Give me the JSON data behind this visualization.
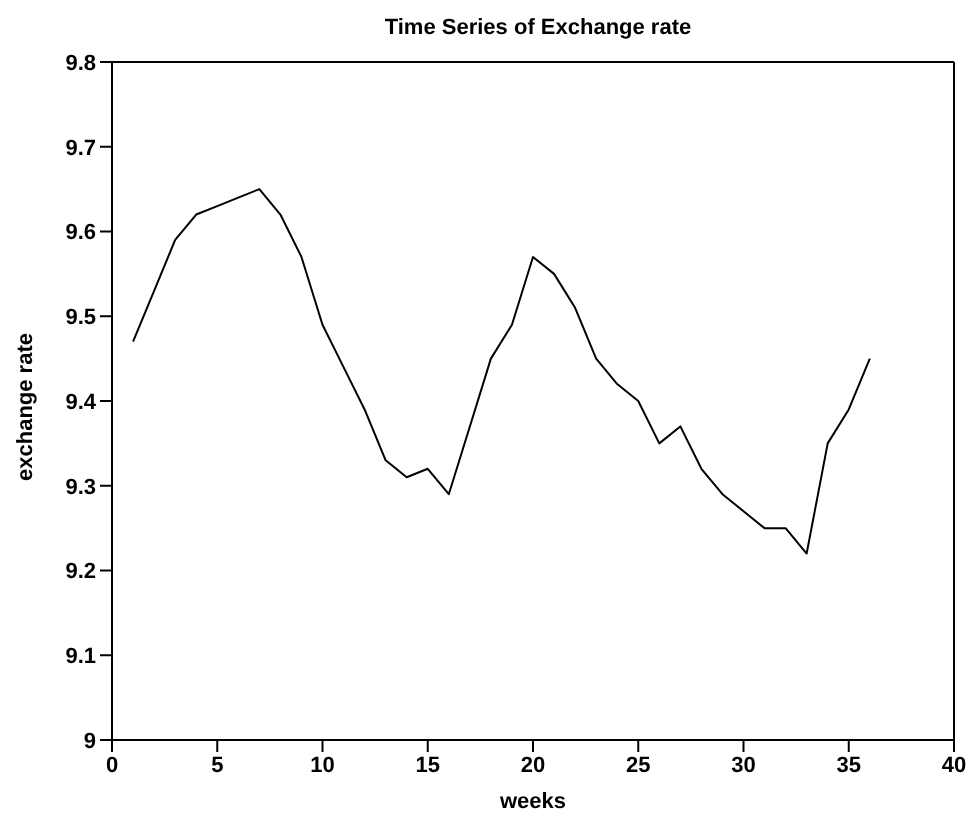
{
  "chart_data": {
    "type": "line",
    "title": "Time Series of Exchange rate",
    "xlabel": "weeks",
    "ylabel": "exchange rate",
    "x": [
      1,
      2,
      3,
      4,
      5,
      6,
      7,
      8,
      9,
      10,
      11,
      12,
      13,
      14,
      15,
      16,
      17,
      18,
      19,
      20,
      21,
      22,
      23,
      24,
      25,
      26,
      27,
      28,
      29,
      30,
      31,
      32,
      33,
      34,
      35,
      36
    ],
    "series": [
      {
        "color": "#000000",
        "values": [
          9.47,
          9.53,
          9.59,
          9.62,
          9.63,
          9.64,
          9.65,
          9.62,
          9.57,
          9.49,
          9.44,
          9.39,
          9.33,
          9.31,
          9.32,
          9.29,
          9.37,
          9.45,
          9.49,
          9.57,
          9.55,
          9.51,
          9.45,
          9.42,
          9.4,
          9.35,
          9.37,
          9.32,
          9.29,
          9.27,
          9.25,
          9.25,
          9.22,
          9.35,
          9.39,
          9.45
        ]
      }
    ],
    "xlim": [
      0,
      40
    ],
    "xticks": [
      0,
      5,
      10,
      15,
      20,
      25,
      30,
      35,
      40
    ],
    "ylim": [
      9,
      9.8
    ],
    "yticks": [
      9,
      9.1,
      9.2,
      9.3,
      9.4,
      9.5,
      9.6,
      9.7,
      9.8
    ],
    "grid": false,
    "legend": false,
    "marker": "none",
    "line_style": "solid"
  }
}
